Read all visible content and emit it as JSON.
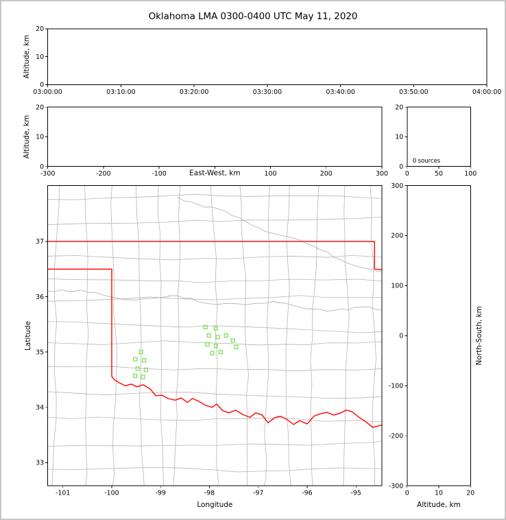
{
  "figure": {
    "title": "Oklahoma LMA 0300-0400 UTC May 11, 2020"
  },
  "colors": {
    "frame": "#000000",
    "county_line": "#b5b5b5",
    "state_border": "#ff0000",
    "station": "#7de05a",
    "background": "#ffffff",
    "outer_border": "#c6c6c6",
    "text": "#000000"
  },
  "chart_data": [
    {
      "id": "time_height",
      "type": "scatter",
      "xlabel": "",
      "ylabel": "Altitude, km",
      "x_tick_labels": [
        "03:00:00",
        "03:10:00",
        "03:20:00",
        "03:30:00",
        "03:40:00",
        "03:50:00",
        "04:00:00"
      ],
      "ylim": [
        0,
        20
      ],
      "yticks": [
        0,
        10,
        20
      ],
      "points": []
    },
    {
      "id": "ew_height",
      "type": "scatter",
      "xlabel": "East-West, km",
      "ylabel": "Altitude, km",
      "xlim": [
        -300,
        300
      ],
      "xticks": [
        -300,
        -200,
        -100,
        0,
        100,
        200,
        300
      ],
      "hide_xtick_labels": [
        0
      ],
      "ylim": [
        0,
        20
      ],
      "yticks": [
        0,
        10,
        20
      ],
      "points": []
    },
    {
      "id": "alt_histogram",
      "type": "line",
      "xlabel": "",
      "ylabel": "",
      "xlim": [
        0,
        100
      ],
      "xticks": [
        0,
        50,
        100
      ],
      "ylim": [
        0,
        20
      ],
      "yticks": [
        0,
        10,
        20
      ],
      "annotation": "0 sources",
      "points": []
    },
    {
      "id": "plan_view",
      "type": "scatter",
      "xlabel": "Longitude",
      "ylabel": "Latitude",
      "xlim": [
        -101.31,
        -94.47
      ],
      "xticks": [
        -101,
        -100,
        -99,
        -98,
        -97,
        -96,
        -95
      ],
      "ylim": [
        32.58,
        38.01
      ],
      "yticks": [
        33,
        34,
        35,
        36,
        37
      ],
      "stations": [
        [
          -98.08,
          35.45
        ],
        [
          -97.87,
          35.43
        ],
        [
          -98.01,
          35.3
        ],
        [
          -97.83,
          35.27
        ],
        [
          -97.66,
          35.3
        ],
        [
          -98.04,
          35.14
        ],
        [
          -97.87,
          35.11
        ],
        [
          -97.52,
          35.21
        ],
        [
          -97.45,
          35.09
        ],
        [
          -97.94,
          34.98
        ],
        [
          -97.77,
          35.0
        ],
        [
          -99.4,
          35.0
        ],
        [
          -99.52,
          34.87
        ],
        [
          -99.34,
          34.85
        ],
        [
          -99.47,
          34.7
        ],
        [
          -99.3,
          34.68
        ],
        [
          -99.52,
          34.57
        ],
        [
          -99.36,
          34.55
        ]
      ],
      "state_border": [
        [
          [
            -101.31,
            37.0
          ],
          [
            -94.62,
            37.0
          ],
          [
            -94.62,
            36.5
          ],
          [
            -94.47,
            36.49
          ]
        ],
        [
          [
            -101.31,
            36.5
          ],
          [
            -100.0,
            36.5
          ],
          [
            -100.0,
            34.56
          ],
          [
            -99.95,
            34.5
          ],
          [
            -99.84,
            34.44
          ],
          [
            -99.72,
            34.39
          ],
          [
            -99.6,
            34.42
          ],
          [
            -99.48,
            34.37
          ],
          [
            -99.36,
            34.41
          ],
          [
            -99.21,
            34.33
          ],
          [
            -99.1,
            34.21
          ],
          [
            -98.97,
            34.22
          ],
          [
            -98.85,
            34.16
          ],
          [
            -98.7,
            34.13
          ],
          [
            -98.58,
            34.17
          ],
          [
            -98.45,
            34.09
          ],
          [
            -98.35,
            34.16
          ],
          [
            -98.22,
            34.11
          ],
          [
            -98.09,
            34.04
          ],
          [
            -97.95,
            34.0
          ],
          [
            -97.85,
            34.06
          ],
          [
            -97.73,
            33.94
          ],
          [
            -97.6,
            33.9
          ],
          [
            -97.46,
            33.95
          ],
          [
            -97.32,
            33.87
          ],
          [
            -97.17,
            33.82
          ],
          [
            -97.05,
            33.9
          ],
          [
            -96.92,
            33.86
          ],
          [
            -96.8,
            33.72
          ],
          [
            -96.67,
            33.81
          ],
          [
            -96.55,
            33.84
          ],
          [
            -96.41,
            33.78
          ],
          [
            -96.28,
            33.69
          ],
          [
            -96.15,
            33.76
          ],
          [
            -96.0,
            33.7
          ],
          [
            -95.86,
            33.84
          ],
          [
            -95.74,
            33.88
          ],
          [
            -95.6,
            33.91
          ],
          [
            -95.45,
            33.86
          ],
          [
            -95.31,
            33.9
          ],
          [
            -95.2,
            33.95
          ],
          [
            -95.08,
            33.92
          ],
          [
            -94.94,
            33.82
          ],
          [
            -94.8,
            33.74
          ],
          [
            -94.66,
            33.64
          ],
          [
            -94.47,
            33.68
          ]
        ]
      ]
    },
    {
      "id": "ns_height",
      "type": "scatter",
      "xlabel": "Altitude, km",
      "ylabel_right": "North-South, km",
      "xlim": [
        0,
        20
      ],
      "xticks": [
        0,
        10,
        20
      ],
      "ylim": [
        -300,
        300
      ],
      "yticks": [
        -300,
        -200,
        -100,
        0,
        100,
        200,
        300
      ],
      "points": []
    }
  ]
}
